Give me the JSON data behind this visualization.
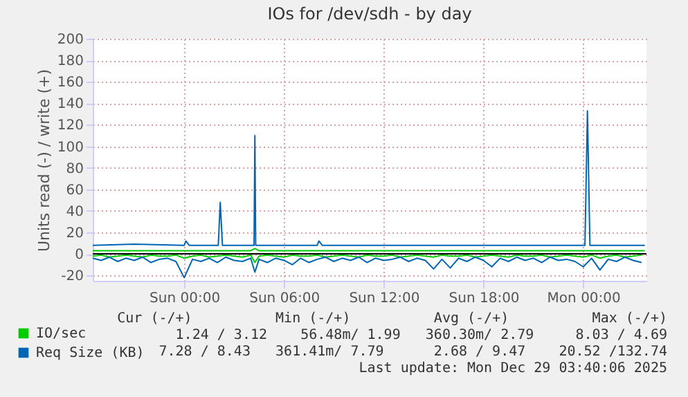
{
  "chart_data": {
    "type": "line",
    "title": "IOs for /dev/sdh - by day",
    "ylabel": "Units read (-) / write (+)",
    "xlim": [
      "2025-12-27T18:30",
      "2025-12-29T03:48"
    ],
    "xticks": [
      {
        "value": "2025-12-28T00:00",
        "label": "Sun 00:00"
      },
      {
        "value": "2025-12-28T06:00",
        "label": "Sun 06:00"
      },
      {
        "value": "2025-12-28T12:00",
        "label": "Sun 12:00"
      },
      {
        "value": "2025-12-28T18:00",
        "label": "Sun 18:00"
      },
      {
        "value": "2025-12-29T00:00",
        "label": "Mon 00:00"
      }
    ],
    "ylim": [
      -25,
      200
    ],
    "yticks": [
      -20,
      0,
      20,
      40,
      60,
      80,
      100,
      120,
      140,
      160,
      180,
      200
    ],
    "grid": true,
    "legend": "bottom left",
    "marker": "none",
    "line_style": "solid",
    "ref_lines": [
      {
        "axis": "y",
        "value": 0,
        "color": "#000000"
      }
    ],
    "annotations": [
      "Cur (-/+)          Min (-/+)          Avg (-/+)          Max (-/+)",
      "1.24 / 3.12    56.48m/ 1.99   360.30m/ 2.79     8.03 / 4.69",
      "7.28 / 8.43   361.41m/ 7.79      2.68 / 9.47    20.52 /132.74",
      "Last update: Mon Dec 29 03:40:06 2025"
    ],
    "series": [
      {
        "color": "#00cc00",
        "x": [
          "2025-12-27T18:30",
          "2025-12-27T19:00",
          "2025-12-27T19:30",
          "2025-12-27T20:00",
          "2025-12-27T20:30",
          "2025-12-27T21:00",
          "2025-12-27T21:30",
          "2025-12-27T22:00",
          "2025-12-27T22:30",
          "2025-12-27T23:00",
          "2025-12-27T23:30",
          "2025-12-28T00:00",
          "2025-12-28T00:30",
          "2025-12-28T01:00",
          "2025-12-28T01:30",
          "2025-12-28T02:00",
          "2025-12-28T02:30",
          "2025-12-28T03:00",
          "2025-12-28T03:30",
          "2025-12-28T04:00",
          "2025-12-28T04:15",
          "2025-12-28T04:30",
          "2025-12-28T05:00",
          "2025-12-28T05:30",
          "2025-12-28T06:00",
          "2025-12-28T06:30",
          "2025-12-28T07:00",
          "2025-12-28T07:30",
          "2025-12-28T08:00",
          "2025-12-28T08:30",
          "2025-12-28T09:00",
          "2025-12-28T09:30",
          "2025-12-28T10:00",
          "2025-12-28T10:30",
          "2025-12-28T11:00",
          "2025-12-28T11:30",
          "2025-12-28T12:00",
          "2025-12-28T12:30",
          "2025-12-28T13:00",
          "2025-12-28T13:30",
          "2025-12-28T14:00",
          "2025-12-28T14:30",
          "2025-12-28T15:00",
          "2025-12-28T15:30",
          "2025-12-28T16:00",
          "2025-12-28T16:30",
          "2025-12-28T17:00",
          "2025-12-28T17:30",
          "2025-12-28T18:00",
          "2025-12-28T18:30",
          "2025-12-28T19:00",
          "2025-12-28T19:30",
          "2025-12-28T20:00",
          "2025-12-28T20:30",
          "2025-12-28T21:00",
          "2025-12-28T21:30",
          "2025-12-28T22:00",
          "2025-12-28T22:30",
          "2025-12-28T23:00",
          "2025-12-28T23:30",
          "2025-12-29T00:00",
          "2025-12-29T00:30",
          "2025-12-29T01:00",
          "2025-12-29T01:30",
          "2025-12-29T02:00",
          "2025-12-29T02:30",
          "2025-12-29T03:00",
          "2025-12-29T03:30"
        ],
        "values": [
          -2,
          -1,
          -3,
          -2,
          -1,
          -2,
          -3,
          -1,
          -2,
          -2,
          -1,
          -4,
          -2,
          -1,
          -3,
          -2,
          -1,
          -2,
          -3,
          -1,
          -8,
          -2,
          -1,
          -2,
          -3,
          -1,
          -2,
          -2,
          -1,
          -3,
          -2,
          -1,
          -2,
          -3,
          -1,
          -2,
          -2,
          -1,
          -3,
          -2,
          -1,
          -2,
          -3,
          -1,
          -2,
          -2,
          -1,
          -3,
          -2,
          -1,
          -2,
          -3,
          -1,
          -2,
          -2,
          -1,
          -3,
          -2,
          -1,
          -2,
          -3,
          -1,
          -4,
          -2,
          -1,
          -3,
          -2,
          -1
        ]
      },
      {
        "color": "#0066b3",
        "x": [
          "2025-12-27T18:30",
          "2025-12-27T19:00",
          "2025-12-27T19:30",
          "2025-12-27T20:00",
          "2025-12-27T20:30",
          "2025-12-27T21:00",
          "2025-12-27T21:30",
          "2025-12-27T22:00",
          "2025-12-27T22:30",
          "2025-12-27T23:00",
          "2025-12-27T23:30",
          "2025-12-28T00:00",
          "2025-12-28T00:30",
          "2025-12-28T01:00",
          "2025-12-28T01:30",
          "2025-12-28T02:00",
          "2025-12-28T02:30",
          "2025-12-28T03:00",
          "2025-12-28T03:30",
          "2025-12-28T04:00",
          "2025-12-28T04:15",
          "2025-12-28T04:30",
          "2025-12-28T05:00",
          "2025-12-28T05:30",
          "2025-12-28T06:00",
          "2025-12-28T06:30",
          "2025-12-28T07:00",
          "2025-12-28T07:30",
          "2025-12-28T08:00",
          "2025-12-28T08:30",
          "2025-12-28T09:00",
          "2025-12-28T09:30",
          "2025-12-28T10:00",
          "2025-12-28T10:30",
          "2025-12-28T11:00",
          "2025-12-28T11:30",
          "2025-12-28T12:00",
          "2025-12-28T12:30",
          "2025-12-28T13:00",
          "2025-12-28T13:30",
          "2025-12-28T14:00",
          "2025-12-28T14:30",
          "2025-12-28T15:00",
          "2025-12-28T15:30",
          "2025-12-28T16:00",
          "2025-12-28T16:30",
          "2025-12-28T17:00",
          "2025-12-28T17:30",
          "2025-12-28T18:00",
          "2025-12-28T18:30",
          "2025-12-28T19:00",
          "2025-12-28T19:30",
          "2025-12-28T20:00",
          "2025-12-28T20:30",
          "2025-12-28T21:00",
          "2025-12-28T21:30",
          "2025-12-28T22:00",
          "2025-12-28T22:30",
          "2025-12-28T23:00",
          "2025-12-28T23:30",
          "2025-12-29T00:00",
          "2025-12-29T00:30",
          "2025-12-29T01:00",
          "2025-12-29T01:30",
          "2025-12-29T02:00",
          "2025-12-29T02:30",
          "2025-12-29T03:00",
          "2025-12-29T03:30"
        ],
        "values": [
          -4,
          -6,
          -3,
          -7,
          -4,
          -6,
          -3,
          -8,
          -5,
          -4,
          -7,
          -22,
          -5,
          -7,
          -4,
          -8,
          -3,
          -6,
          -7,
          -4,
          -17,
          -5,
          -8,
          -4,
          -6,
          -10,
          -4,
          -8,
          -5,
          -3,
          -7,
          -4,
          -6,
          -3,
          -8,
          -4,
          -6,
          -5,
          -3,
          -7,
          -4,
          -6,
          -14,
          -5,
          -13,
          -4,
          -7,
          -3,
          -6,
          -12,
          -4,
          -7,
          -3,
          -6,
          -4,
          -8,
          -3,
          -6,
          -5,
          -7,
          -12,
          -4,
          -15,
          -5,
          -7,
          -3,
          -6,
          -8
        ]
      },
      {
        "name": "IO/sec",
        "color": "#00cc00",
        "x": [
          "2025-12-27T18:30",
          "2025-12-27T22:00",
          "2025-12-28T01:00",
          "2025-12-28T04:00",
          "2025-12-28T04:15",
          "2025-12-28T04:30",
          "2025-12-28T07:00",
          "2025-12-28T10:00",
          "2025-12-28T13:00",
          "2025-12-28T16:00",
          "2025-12-28T19:00",
          "2025-12-28T22:00",
          "2025-12-29T01:00",
          "2025-12-29T03:42"
        ],
        "values": [
          3,
          3,
          3,
          3,
          5,
          3,
          3,
          3,
          3,
          3,
          3,
          3,
          3,
          3
        ]
      },
      {
        "name": "Req Size (KB)",
        "color": "#0066b3",
        "x": [
          "2025-12-27T18:30",
          "2025-12-27T21:00",
          "2025-12-28T00:00",
          "2025-12-28T00:06",
          "2025-12-28T00:18",
          "2025-12-28T02:00",
          "2025-12-28T02:03",
          "2025-12-28T02:10",
          "2025-12-28T02:18",
          "2025-12-28T02:24",
          "2025-12-28T04:00",
          "2025-12-28T04:12",
          "2025-12-28T04:15",
          "2025-12-28T04:18",
          "2025-12-28T04:30",
          "2025-12-28T08:00",
          "2025-12-28T08:06",
          "2025-12-28T08:18",
          "2025-12-28T14:00",
          "2025-12-28T20:00",
          "2025-12-29T00:06",
          "2025-12-29T00:15",
          "2025-12-29T00:24",
          "2025-12-29T00:36",
          "2025-12-29T03:42"
        ],
        "values": [
          8,
          9,
          8,
          12,
          8,
          8,
          8,
          48,
          8,
          8,
          8,
          8,
          110,
          8,
          8,
          8,
          12,
          8,
          8,
          8,
          8,
          133,
          8,
          8,
          8
        ]
      }
    ]
  }
}
